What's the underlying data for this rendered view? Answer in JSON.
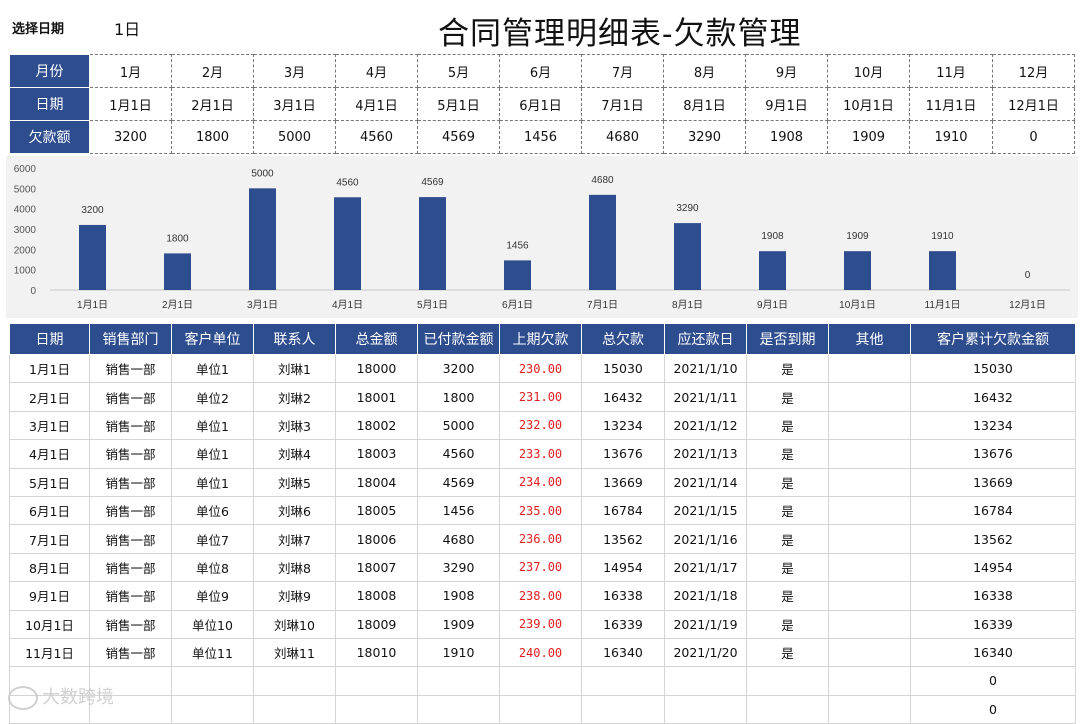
{
  "header": {
    "select_date_label": "选择日期",
    "select_date_value": "1日",
    "title": "合同管理明细表-欠款管理"
  },
  "summary": {
    "row_labels": [
      "月份",
      "日期",
      "欠款额"
    ],
    "months": [
      "1月",
      "2月",
      "3月",
      "4月",
      "5月",
      "6月",
      "7月",
      "8月",
      "9月",
      "10月",
      "11月",
      "12月"
    ],
    "dates": [
      "1月1日",
      "2月1日",
      "3月1日",
      "4月1日",
      "5月1日",
      "6月1日",
      "7月1日",
      "8月1日",
      "9月1日",
      "10月1日",
      "11月1日",
      "12月1日"
    ],
    "amounts": [
      "3200",
      "1800",
      "5000",
      "4560",
      "4569",
      "1456",
      "4680",
      "3290",
      "1908",
      "1909",
      "1910",
      "0"
    ]
  },
  "chart_data": {
    "type": "bar",
    "categories": [
      "1月1日",
      "2月1日",
      "3月1日",
      "4月1日",
      "5月1日",
      "6月1日",
      "7月1日",
      "8月1日",
      "9月1日",
      "10月1日",
      "11月1日",
      "12月1日"
    ],
    "values": [
      3200,
      1800,
      5000,
      4560,
      4569,
      1456,
      4680,
      3290,
      1908,
      1909,
      1910,
      0
    ],
    "y_ticks": [
      0,
      1000,
      2000,
      3000,
      4000,
      5000,
      6000
    ],
    "ylim": [
      0,
      6000
    ],
    "title": "",
    "xlabel": "",
    "ylabel": "",
    "grid": false,
    "bar_color": "#2e4d8f",
    "background": "#f2f2f2"
  },
  "detail": {
    "headers": [
      "日期",
      "销售部门",
      "客户单位",
      "联系人",
      "总金额",
      "已付款金额",
      "上期欠款",
      "总欠款",
      "应还款日",
      "是否到期",
      "其他",
      "客户累计欠款金额"
    ],
    "rows": [
      [
        "1月1日",
        "销售一部",
        "单位1",
        "刘琳1",
        "18000",
        "3200",
        "230.00",
        "15030",
        "2021/1/10",
        "是",
        "",
        "15030"
      ],
      [
        "2月1日",
        "销售一部",
        "单位2",
        "刘琳2",
        "18001",
        "1800",
        "231.00",
        "16432",
        "2021/1/11",
        "是",
        "",
        "16432"
      ],
      [
        "3月1日",
        "销售一部",
        "单位1",
        "刘琳3",
        "18002",
        "5000",
        "232.00",
        "13234",
        "2021/1/12",
        "是",
        "",
        "13234"
      ],
      [
        "4月1日",
        "销售一部",
        "单位1",
        "刘琳4",
        "18003",
        "4560",
        "233.00",
        "13676",
        "2021/1/13",
        "是",
        "",
        "13676"
      ],
      [
        "5月1日",
        "销售一部",
        "单位1",
        "刘琳5",
        "18004",
        "4569",
        "234.00",
        "13669",
        "2021/1/14",
        "是",
        "",
        "13669"
      ],
      [
        "6月1日",
        "销售一部",
        "单位6",
        "刘琳6",
        "18005",
        "1456",
        "235.00",
        "16784",
        "2021/1/15",
        "是",
        "",
        "16784"
      ],
      [
        "7月1日",
        "销售一部",
        "单位7",
        "刘琳7",
        "18006",
        "4680",
        "236.00",
        "13562",
        "2021/1/16",
        "是",
        "",
        "13562"
      ],
      [
        "8月1日",
        "销售一部",
        "单位8",
        "刘琳8",
        "18007",
        "3290",
        "237.00",
        "14954",
        "2021/1/17",
        "是",
        "",
        "14954"
      ],
      [
        "9月1日",
        "销售一部",
        "单位9",
        "刘琳9",
        "18008",
        "1908",
        "238.00",
        "16338",
        "2021/1/18",
        "是",
        "",
        "16338"
      ],
      [
        "10月1日",
        "销售一部",
        "单位10",
        "刘琳10",
        "18009",
        "1909",
        "239.00",
        "16339",
        "2021/1/19",
        "是",
        "",
        "16339"
      ],
      [
        "11月1日",
        "销售一部",
        "单位11",
        "刘琳11",
        "18010",
        "1910",
        "240.00",
        "16340",
        "2021/1/20",
        "是",
        "",
        "16340"
      ],
      [
        "",
        "",
        "",
        "",
        "",
        "",
        "",
        "",
        "",
        "",
        "",
        "0"
      ],
      [
        "",
        "",
        "",
        "",
        "",
        "",
        "",
        "",
        "",
        "",
        "",
        "0"
      ]
    ]
  },
  "watermark": {
    "text": "大数跨境"
  }
}
